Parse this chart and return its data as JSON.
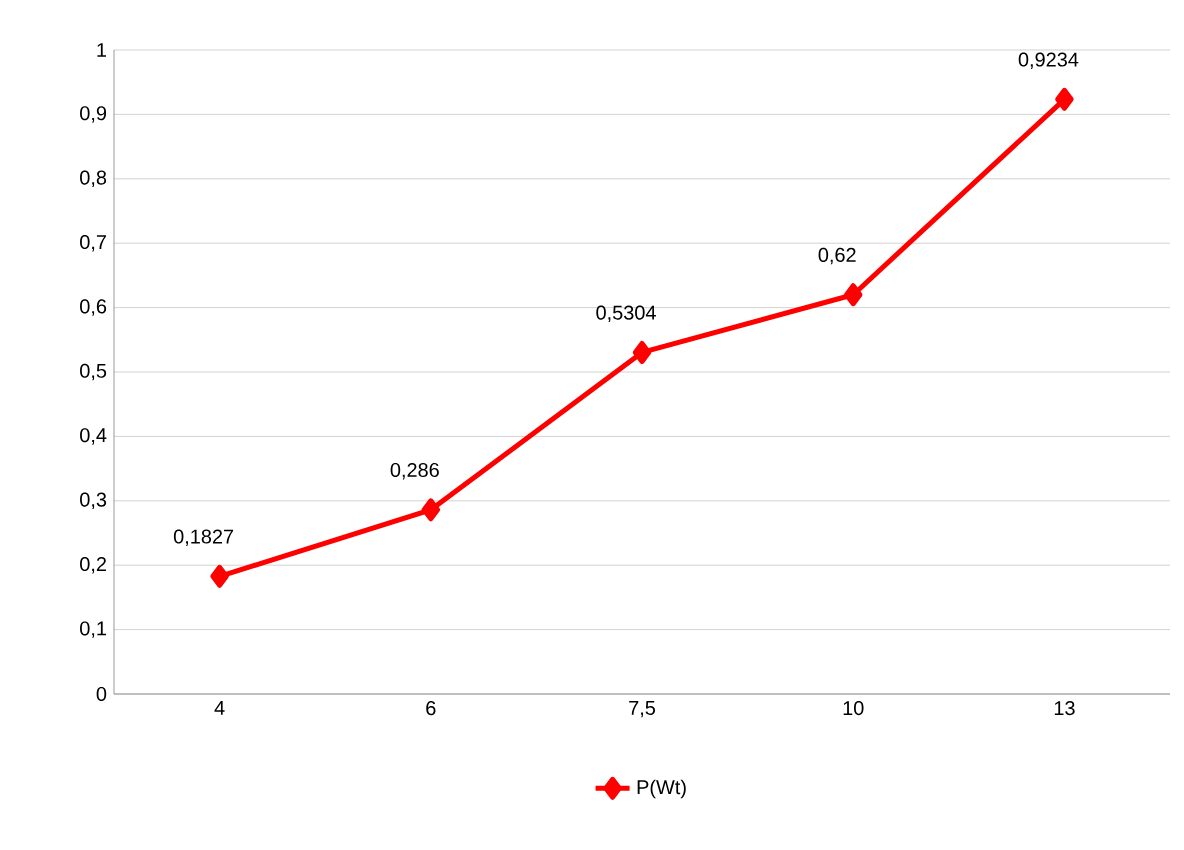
{
  "chart_data": {
    "type": "line",
    "categories": [
      "4",
      "6",
      "7,5",
      "10",
      "13"
    ],
    "series": [
      {
        "name": "P(Wt)",
        "color": "#ff0000",
        "values": [
          0.1827,
          0.286,
          0.5304,
          0.62,
          0.9234
        ],
        "value_labels": [
          "0,1827",
          "0,286",
          "0,5304",
          "0,62",
          "0,9234"
        ]
      }
    ],
    "ylim": [
      0,
      1
    ],
    "yticks": [
      0,
      {
        "value": 0.1,
        "label": "0,1"
      },
      {
        "value": 0.2,
        "label": "0,2"
      },
      {
        "value": 0.3,
        "label": "0,3"
      },
      {
        "value": 0.4,
        "label": "0,4"
      },
      {
        "value": 0.5,
        "label": "0,5"
      },
      {
        "value": 0.6,
        "label": "0,6"
      },
      {
        "value": 0.7,
        "label": "0,7"
      },
      {
        "value": 0.8,
        "label": "0,8"
      },
      {
        "value": 0.9,
        "label": "0,9"
      },
      1
    ],
    "grid": "y",
    "legend": "bottom",
    "marker": "diamond",
    "line_style": "solid"
  }
}
